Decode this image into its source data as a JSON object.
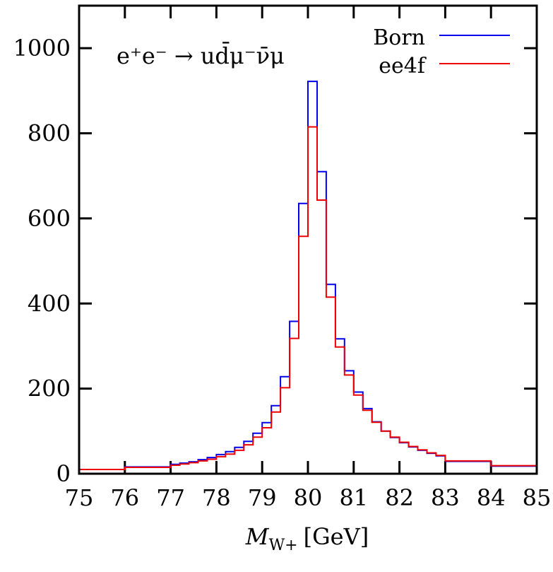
{
  "chart_data": {
    "type": "line",
    "style": "step-histogram",
    "annotation": "e⁺e⁻ → ud̄μ⁻ν̄μ",
    "xlabel": "M",
    "xlabel_sub": "W+",
    "xlabel_unit": "[GeV]",
    "ylabel": "",
    "xlim": [
      75,
      85
    ],
    "ylim": [
      0,
      1000
    ],
    "xticks": [
      75,
      76,
      77,
      78,
      79,
      80,
      81,
      82,
      83,
      84,
      85
    ],
    "yticks": [
      0,
      200,
      400,
      600,
      800,
      1000
    ],
    "legend_position": "top-right",
    "bin_edges": [
      75,
      76,
      77,
      77.2,
      77.4,
      77.6,
      77.8,
      78,
      78.2,
      78.4,
      78.6,
      78.8,
      79,
      79.2,
      79.4,
      79.6,
      79.8,
      80,
      80.2,
      80.4,
      80.6,
      80.8,
      81,
      81.2,
      81.4,
      81.6,
      81.8,
      82,
      82.2,
      82.4,
      82.6,
      82.8,
      83,
      84,
      85
    ],
    "series": [
      {
        "name": "Born",
        "color": "#0000ee",
        "values": [
          10,
          16,
          22,
          25,
          28,
          33,
          38,
          45,
          52,
          62,
          76,
          95,
          120,
          160,
          228,
          358,
          635,
          922,
          710,
          445,
          317,
          242,
          192,
          153,
          122,
          100,
          85,
          73,
          63,
          55,
          48,
          42,
          29,
          18
        ]
      },
      {
        "name": "ee4f",
        "color": "#ee0000",
        "values": [
          10,
          15,
          20,
          23,
          26,
          30,
          34,
          40,
          46,
          55,
          68,
          86,
          108,
          145,
          202,
          318,
          558,
          815,
          643,
          415,
          298,
          232,
          185,
          149,
          121,
          100,
          86,
          74,
          64,
          56,
          49,
          43,
          30,
          19
        ]
      }
    ]
  }
}
